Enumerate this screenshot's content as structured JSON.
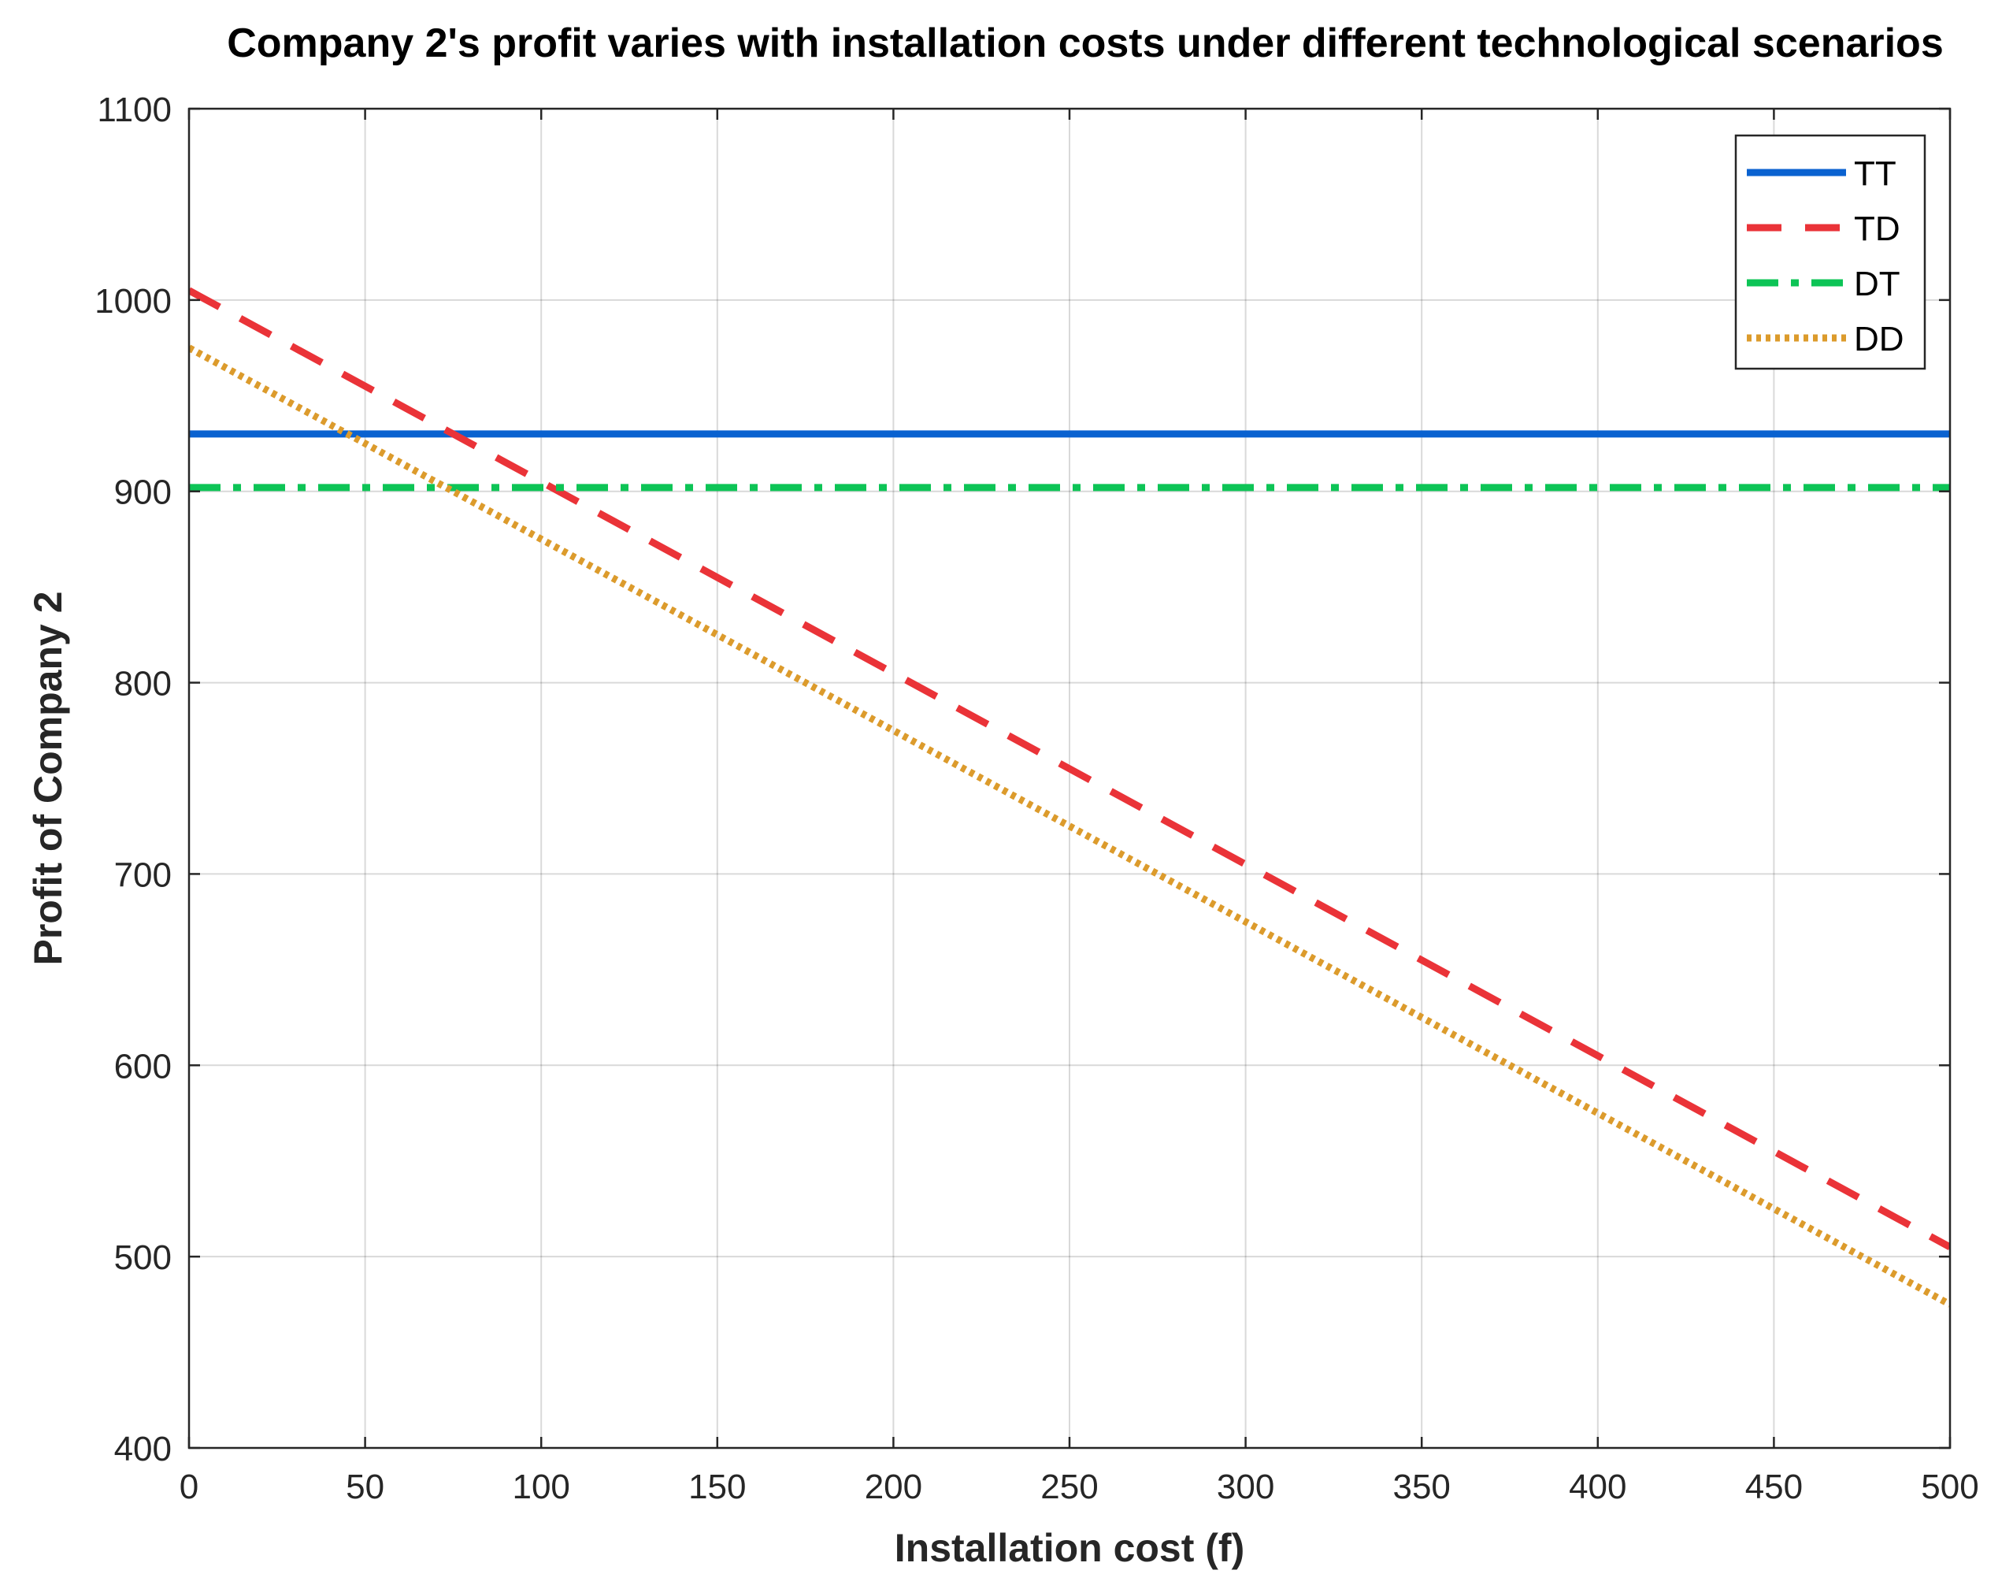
{
  "chart_data": {
    "type": "line",
    "title": "Company 2's profit varies with installation costs under different technological scenarios",
    "xlabel": "Installation cost (f)",
    "ylabel": "Profit of Company 2",
    "xlim": [
      0,
      500
    ],
    "ylim": [
      400,
      1100
    ],
    "xticks": [
      0,
      50,
      100,
      150,
      200,
      250,
      300,
      350,
      400,
      450,
      500
    ],
    "yticks": [
      400,
      500,
      600,
      700,
      800,
      900,
      1000,
      1100
    ],
    "grid": true,
    "legend_position": "top-right",
    "x": [
      0,
      500
    ],
    "series": [
      {
        "name": "TT",
        "values": [
          930,
          930
        ],
        "color": "#0a62d0",
        "style": "solid"
      },
      {
        "name": "TD",
        "values": [
          1005,
          505
        ],
        "color": "#ea3338",
        "style": "dashed"
      },
      {
        "name": "DT",
        "values": [
          902,
          902
        ],
        "color": "#0dc456",
        "style": "dashdot"
      },
      {
        "name": "DD",
        "values": [
          975,
          475
        ],
        "color": "#dc9b2c",
        "style": "dotted"
      }
    ]
  }
}
